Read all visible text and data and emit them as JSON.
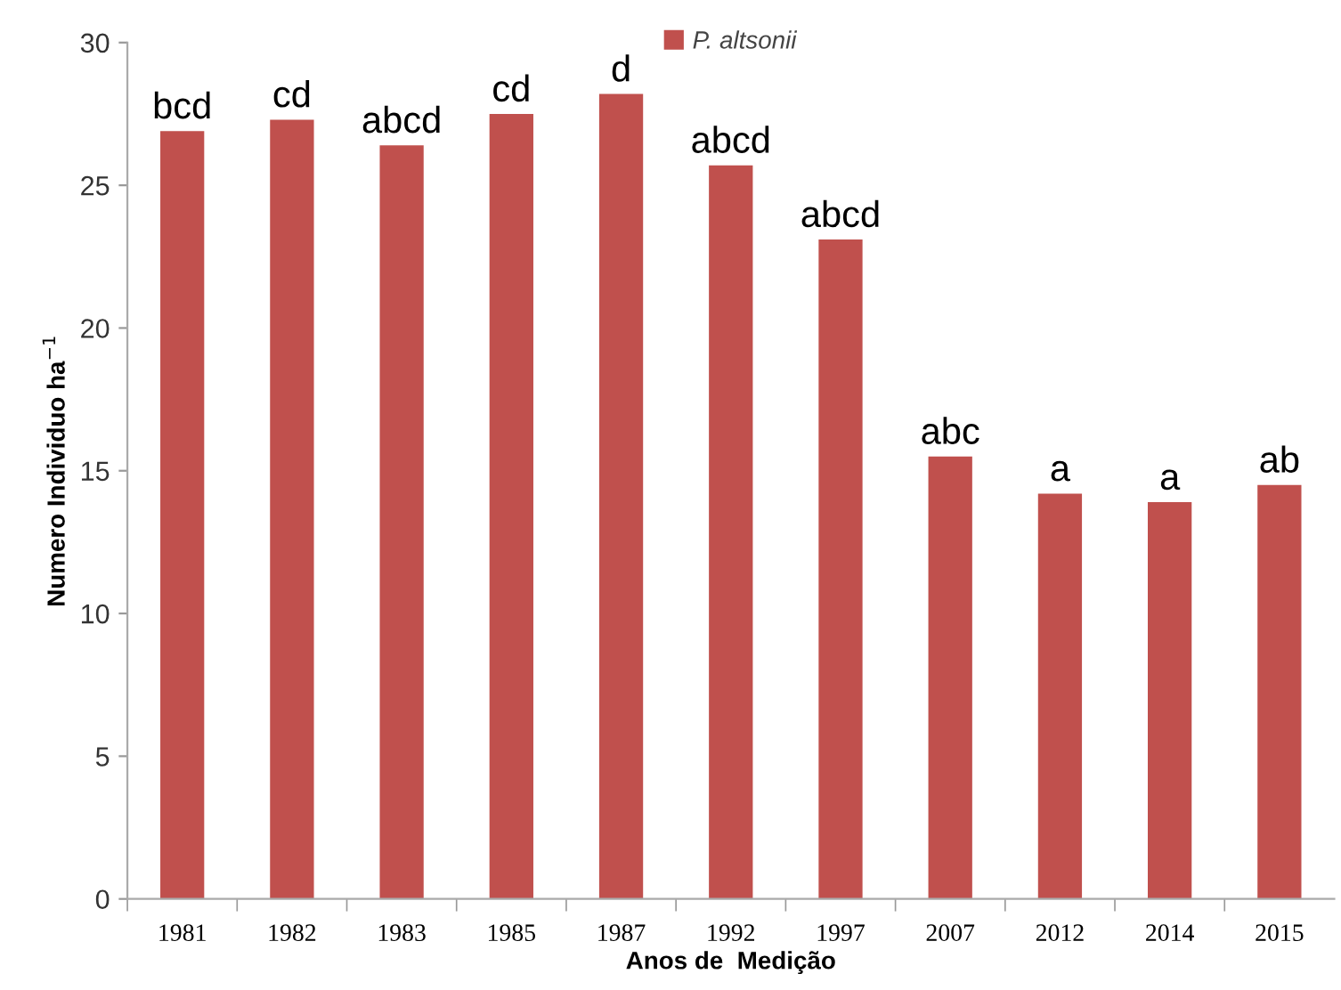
{
  "chart_data": {
    "type": "bar",
    "xlabel": "Anos de  Medição",
    "ylabel": "Numero Individuo ha$^{−1}$",
    "categories": [
      "1981",
      "1982",
      "1983",
      "1985",
      "1987",
      "1992",
      "1997",
      "2007",
      "2012",
      "2014",
      "2015"
    ],
    "series": [
      {
        "name": "P. altsonii",
        "color": "#c0504d",
        "values": [
          26.9,
          27.3,
          26.4,
          27.5,
          28.2,
          25.7,
          23.1,
          15.5,
          14.2,
          13.9,
          14.5
        ]
      }
    ],
    "ylim": [
      0,
      30
    ],
    "yticks": [
      0,
      5,
      10,
      15,
      20,
      25,
      30
    ],
    "grid": false,
    "legend": "top",
    "annotations": [
      {
        "text": "bcd",
        "x": "1981",
        "y": 26.9
      },
      {
        "text": "cd",
        "x": "1982",
        "y": 27.3
      },
      {
        "text": "abcd",
        "x": "1983",
        "y": 26.4
      },
      {
        "text": "cd",
        "x": "1985",
        "y": 27.5
      },
      {
        "text": "d",
        "x": "1987",
        "y": 28.2
      },
      {
        "text": "abcd",
        "x": "1992",
        "y": 25.7
      },
      {
        "text": "abcd",
        "x": "1997",
        "y": 23.1
      },
      {
        "text": "abc",
        "x": "2007",
        "y": 15.5
      },
      {
        "text": "a",
        "x": "2012",
        "y": 14.2
      },
      {
        "text": "a",
        "x": "2014",
        "y": 13.9
      },
      {
        "text": "ab",
        "x": "2015",
        "y": 14.5
      }
    ]
  }
}
